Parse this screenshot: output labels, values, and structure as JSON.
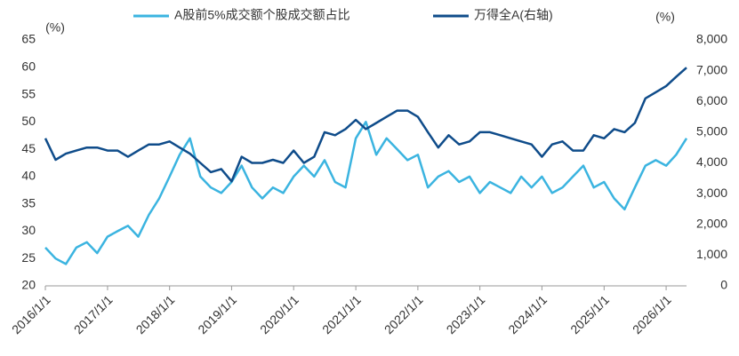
{
  "chart_data": {
    "type": "line",
    "y_label": "(%)",
    "y2_label": "(%)",
    "x": [
      "2016/1/1",
      "2016/3/1",
      "2016/5/1",
      "2016/7/1",
      "2016/9/1",
      "2016/11/1",
      "2017/1/1",
      "2017/3/1",
      "2017/5/1",
      "2017/7/1",
      "2017/9/1",
      "2017/11/1",
      "2018/1/1",
      "2018/3/1",
      "2018/5/1",
      "2018/7/1",
      "2018/9/1",
      "2018/11/1",
      "2019/1/1",
      "2019/3/1",
      "2019/5/1",
      "2019/7/1",
      "2019/9/1",
      "2019/11/1",
      "2020/1/1",
      "2020/3/1",
      "2020/5/1",
      "2020/7/1",
      "2020/9/1",
      "2020/11/1",
      "2021/1/1",
      "2021/3/1",
      "2021/5/1",
      "2021/7/1",
      "2021/9/1",
      "2021/11/1",
      "2022/1/1",
      "2022/3/1",
      "2022/5/1",
      "2022/7/1",
      "2022/9/1",
      "2022/11/1",
      "2023/1/1",
      "2023/3/1",
      "2023/5/1",
      "2023/7/1",
      "2023/9/1",
      "2023/11/1",
      "2024/1/1",
      "2024/3/1",
      "2024/5/1",
      "2024/7/1",
      "2024/9/1",
      "2024/11/1",
      "2025/1/1",
      "2025/3/1",
      "2025/5/1",
      "2025/7/1",
      "2025/9/1",
      "2025/11/1",
      "2026/1/1",
      "2026/3/1",
      "2026/5/1"
    ],
    "series": [
      {
        "name": "A股前5%成交额个股成交额占比",
        "color": "#3bb4e0",
        "axis": "y",
        "values": [
          27,
          25,
          24,
          27,
          28,
          26,
          29,
          30,
          31,
          29,
          33,
          36,
          40,
          44,
          47,
          40,
          38,
          37,
          39,
          42,
          38,
          36,
          38,
          37,
          40,
          42,
          40,
          43,
          39,
          38,
          47,
          50,
          44,
          47,
          45,
          43,
          44,
          38,
          40,
          41,
          39,
          40,
          37,
          39,
          38,
          37,
          40,
          38,
          40,
          37,
          38,
          40,
          42,
          38,
          39,
          36,
          34,
          38,
          42,
          43,
          42,
          44,
          47
        ]
      },
      {
        "name": "万得全A(右轴)",
        "color": "#0f4c8a",
        "axis": "y2",
        "values": [
          4800,
          4100,
          4300,
          4400,
          4500,
          4500,
          4400,
          4400,
          4200,
          4400,
          4600,
          4600,
          4700,
          4500,
          4300,
          4000,
          3700,
          3800,
          3400,
          4200,
          4000,
          4000,
          4100,
          4000,
          4400,
          4000,
          4200,
          5000,
          4900,
          5100,
          5400,
          5100,
          5300,
          5500,
          5700,
          5700,
          5500,
          5000,
          4500,
          4900,
          4600,
          4700,
          5000,
          5000,
          4900,
          4800,
          4700,
          4600,
          4200,
          4600,
          4700,
          4400,
          4400,
          4900,
          4800,
          5100,
          5000,
          5300,
          6100,
          6300,
          6500,
          6800,
          7100
        ]
      }
    ],
    "xlim": [
      "2016/1/1",
      "2026/5/1"
    ],
    "xticks": [
      "2016/1/1",
      "2017/1/1",
      "2018/1/1",
      "2019/1/1",
      "2020/1/1",
      "2021/1/1",
      "2022/1/1",
      "2023/1/1",
      "2024/1/1",
      "2025/1/1",
      "2026/1/1"
    ],
    "ylim": [
      20,
      65
    ],
    "yticks": [
      20,
      25,
      30,
      35,
      40,
      45,
      50,
      55,
      60,
      65
    ],
    "y2lim": [
      0,
      8000
    ],
    "y2ticks": [
      0,
      {
        "value": 1000,
        "label": "1,000"
      },
      {
        "value": 2000,
        "label": "2,000"
      },
      {
        "value": 3000,
        "label": "3,000"
      },
      {
        "value": 4000,
        "label": "4,000"
      },
      {
        "value": 5000,
        "label": "5,000"
      },
      {
        "value": 6000,
        "label": "6,000"
      },
      {
        "value": 7000,
        "label": "7,000"
      },
      {
        "value": 8000,
        "label": "8,000"
      }
    ],
    "grid": false,
    "legend": "top"
  }
}
